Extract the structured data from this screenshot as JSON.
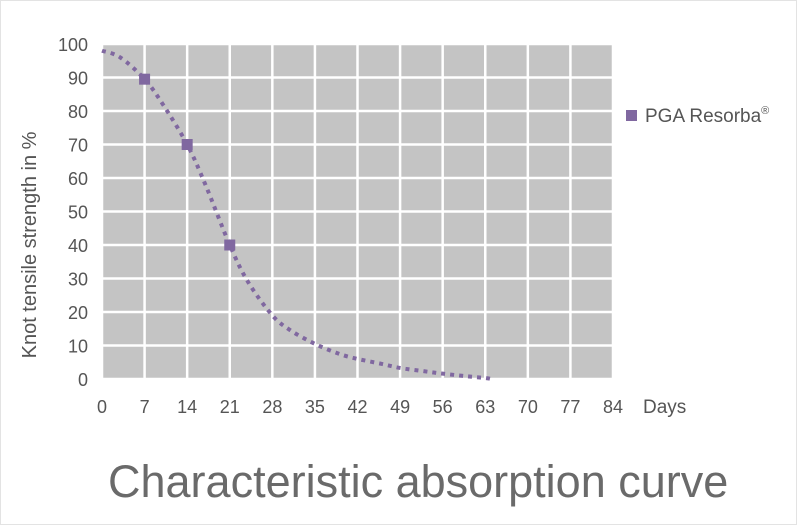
{
  "chart_data": {
    "type": "line",
    "title": "Characteristic absorption curve",
    "xlabel": "Days",
    "ylabel": "Knot tensile strength in %",
    "x_ticks": [
      0,
      7,
      14,
      21,
      28,
      35,
      42,
      49,
      56,
      63,
      70,
      77,
      84
    ],
    "y_ticks": [
      0,
      10,
      20,
      30,
      40,
      50,
      60,
      70,
      80,
      90,
      100
    ],
    "xlim": [
      0,
      84
    ],
    "ylim": [
      0,
      100
    ],
    "grid": true,
    "legend_position": "right",
    "series": [
      {
        "name": "PGA Resorba",
        "name_superscript": "®",
        "color": "#8068a0",
        "line_style": "dotted",
        "marker": "square",
        "markers": [
          {
            "x": 7,
            "y": 89.5
          },
          {
            "x": 14,
            "y": 70
          },
          {
            "x": 21,
            "y": 40
          }
        ],
        "curve": [
          {
            "x": 0,
            "y": 98
          },
          {
            "x": 3,
            "y": 96
          },
          {
            "x": 7,
            "y": 89.5
          },
          {
            "x": 10,
            "y": 82
          },
          {
            "x": 14,
            "y": 70
          },
          {
            "x": 17,
            "y": 58
          },
          {
            "x": 21,
            "y": 40
          },
          {
            "x": 24,
            "y": 29
          },
          {
            "x": 28,
            "y": 19
          },
          {
            "x": 31,
            "y": 14.5
          },
          {
            "x": 35,
            "y": 10.5
          },
          {
            "x": 39,
            "y": 7.5
          },
          {
            "x": 42,
            "y": 6
          },
          {
            "x": 46,
            "y": 4.5
          },
          {
            "x": 49,
            "y": 3.3
          },
          {
            "x": 53,
            "y": 2.3
          },
          {
            "x": 56,
            "y": 1.6
          },
          {
            "x": 60,
            "y": 0.8
          },
          {
            "x": 63,
            "y": 0.3
          },
          {
            "x": 64,
            "y": 0
          }
        ]
      }
    ]
  },
  "colors": {
    "plot_background": "#c4c4c4",
    "grid": "#ffffff",
    "text": "#555555",
    "title": "#6a6a6a"
  }
}
